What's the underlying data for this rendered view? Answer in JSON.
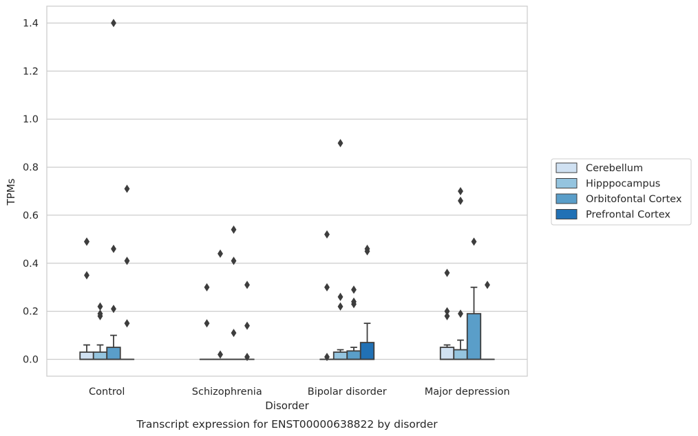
{
  "chart_data": {
    "type": "box",
    "caption": "Transcript expression for ENST00000638822 by disorder",
    "xlabel": "Disorder",
    "ylabel": "TPMs",
    "ylim": [
      -0.07,
      1.47
    ],
    "yticks": [
      0.0,
      0.2,
      0.4,
      0.6,
      0.8,
      1.0,
      1.2,
      1.4
    ],
    "ytick_labels": [
      "0.0",
      "0.2",
      "0.4",
      "0.6",
      "0.8",
      "1.0",
      "1.2",
      "1.4"
    ],
    "categories": [
      "Control",
      "Schizophrenia",
      "Bipolar disorder",
      "Major depression"
    ],
    "grid": "horizontal",
    "legend_position": "right",
    "series": [
      {
        "name": "Cerebellum",
        "color": "#d0e1f2",
        "boxes": [
          {
            "q1": 0.0,
            "median": 0.0,
            "q3": 0.03,
            "whisker_low": 0.0,
            "whisker_high": 0.06,
            "outliers": [
              0.35,
              0.49,
              0.49
            ]
          },
          {
            "q1": 0.0,
            "median": 0.0,
            "q3": 0.0,
            "whisker_low": 0.0,
            "whisker_high": 0.0,
            "outliers": [
              0.15,
              0.3
            ]
          },
          {
            "q1": 0.0,
            "median": 0.0,
            "q3": 0.0,
            "whisker_low": 0.0,
            "whisker_high": 0.0,
            "outliers": [
              0.01,
              0.3,
              0.52
            ]
          },
          {
            "q1": 0.0,
            "median": 0.0,
            "q3": 0.05,
            "whisker_low": 0.0,
            "whisker_high": 0.06,
            "outliers": [
              0.18,
              0.2,
              0.36
            ]
          }
        ]
      },
      {
        "name": "Hipppocampus",
        "color": "#94c4df",
        "boxes": [
          {
            "q1": 0.0,
            "median": 0.0,
            "q3": 0.03,
            "whisker_low": 0.0,
            "whisker_high": 0.06,
            "outliers": [
              0.18,
              0.19,
              0.22
            ]
          },
          {
            "q1": 0.0,
            "median": 0.0,
            "q3": 0.0,
            "whisker_low": 0.0,
            "whisker_high": 0.0,
            "outliers": [
              0.02,
              0.44
            ]
          },
          {
            "q1": 0.0,
            "median": 0.0,
            "q3": 0.03,
            "whisker_low": 0.0,
            "whisker_high": 0.04,
            "outliers": [
              0.22,
              0.26,
              0.9
            ]
          },
          {
            "q1": 0.0,
            "median": 0.0,
            "q3": 0.04,
            "whisker_low": 0.0,
            "whisker_high": 0.08,
            "outliers": [
              0.19,
              0.66,
              0.7
            ]
          }
        ]
      },
      {
        "name": "Orbitofontal Cortex",
        "color": "#5a9ec9",
        "boxes": [
          {
            "q1": 0.0,
            "median": 0.0,
            "q3": 0.05,
            "whisker_low": 0.0,
            "whisker_high": 0.1,
            "outliers": [
              0.21,
              0.46,
              1.4
            ]
          },
          {
            "q1": 0.0,
            "median": 0.0,
            "q3": 0.0,
            "whisker_low": 0.0,
            "whisker_high": 0.0,
            "outliers": [
              0.11,
              0.41,
              0.54
            ]
          },
          {
            "q1": 0.0,
            "median": 0.0,
            "q3": 0.035,
            "whisker_low": 0.0,
            "whisker_high": 0.05,
            "outliers": [
              0.23,
              0.24,
              0.29
            ]
          },
          {
            "q1": 0.0,
            "median": 0.0,
            "q3": 0.19,
            "whisker_low": 0.0,
            "whisker_high": 0.3,
            "outliers": [
              0.49
            ]
          }
        ]
      },
      {
        "name": "Prefrontal Cortex",
        "color": "#2171b5",
        "boxes": [
          {
            "q1": 0.0,
            "median": 0.0,
            "q3": 0.0,
            "whisker_low": 0.0,
            "whisker_high": 0.0,
            "outliers": [
              0.15,
              0.41,
              0.71
            ]
          },
          {
            "q1": 0.0,
            "median": 0.0,
            "q3": 0.0,
            "whisker_low": 0.0,
            "whisker_high": 0.0,
            "outliers": [
              0.01,
              0.14,
              0.31
            ]
          },
          {
            "q1": 0.0,
            "median": 0.0,
            "q3": 0.07,
            "whisker_low": 0.0,
            "whisker_high": 0.15,
            "outliers": [
              0.45,
              0.46
            ]
          },
          {
            "q1": 0.0,
            "median": 0.0,
            "q3": 0.0,
            "whisker_low": 0.0,
            "whisker_high": 0.0,
            "outliers": [
              0.31
            ]
          }
        ]
      }
    ]
  }
}
